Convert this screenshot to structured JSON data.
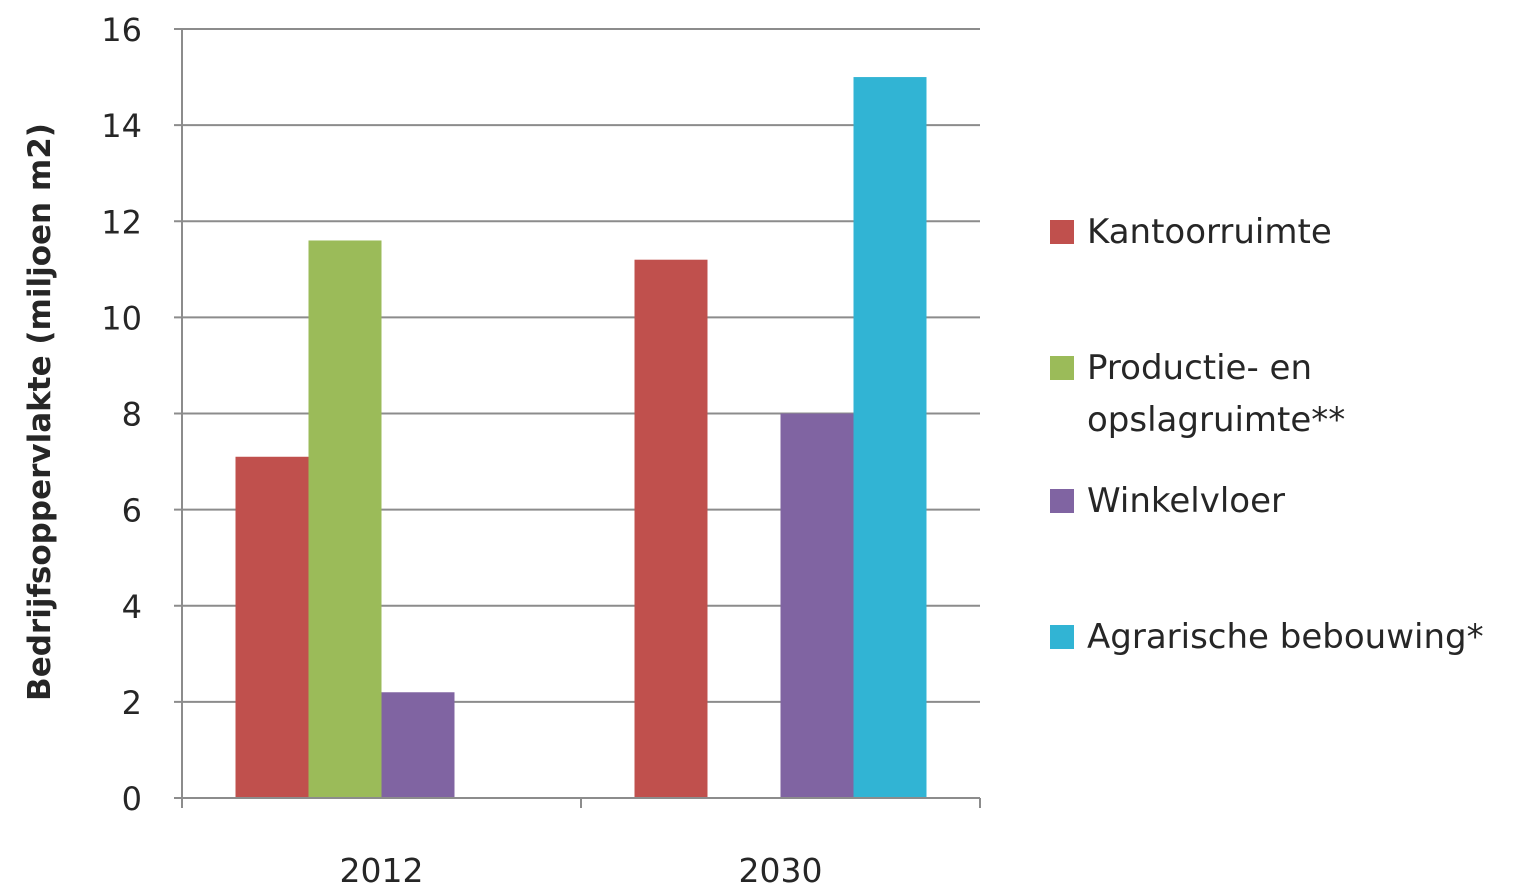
{
  "chart_data": {
    "type": "bar",
    "categories": [
      "2012",
      "2030"
    ],
    "series": [
      {
        "name": "Kantoorruimte",
        "color": "#c0504d",
        "values": [
          7.1,
          11.2
        ]
      },
      {
        "name": "Productie- en opslagruimte**",
        "legend_lines": [
          "Productie- en",
          "opslagruimte**"
        ],
        "color": "#9bbb59",
        "values": [
          11.6,
          null
        ]
      },
      {
        "name": "Winkelvloer",
        "color": "#8064a2",
        "values": [
          2.2,
          8.0
        ]
      },
      {
        "name": "Agrarische bebouwing*",
        "color": "#31b4d4",
        "values": [
          null,
          15.0
        ]
      }
    ],
    "title": "",
    "xlabel": "",
    "ylabel": "Bedrijfsoppervlakte (miljoen m2)",
    "ylim": [
      0,
      16
    ],
    "yticks": [
      0,
      2,
      4,
      6,
      8,
      10,
      12,
      14,
      16
    ],
    "grid": true,
    "legend_position": "right"
  }
}
